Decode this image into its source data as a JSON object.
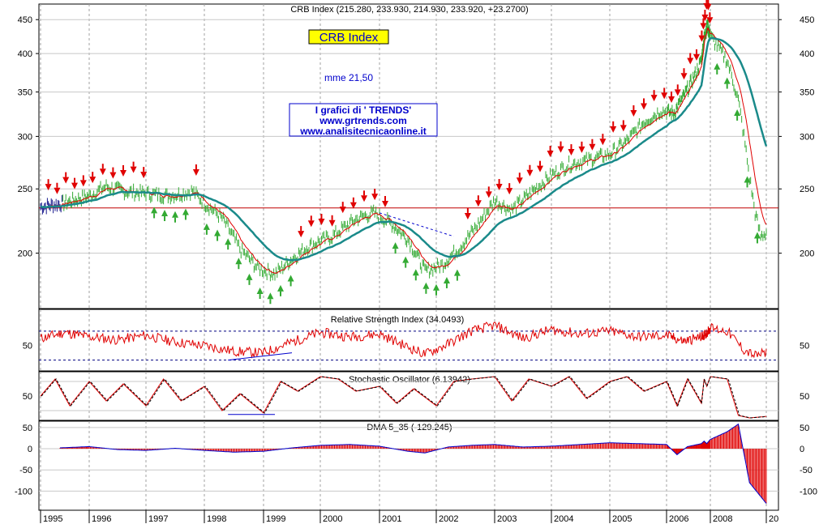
{
  "chart_data": [
    {
      "type": "line",
      "title": "CRB Index (215.280, 233.930, 214.930, 233.920, +23.2700)",
      "legend_label": "CRB Index",
      "moving_average_label": "mme 21,50",
      "credits": [
        "I grafici di ' TRENDS'",
        "www.grtrends.com",
        "www.analisitecnicaonline.it"
      ],
      "y_ticks": [
        450,
        400,
        350,
        300,
        250,
        200
      ],
      "ylim": [
        165,
        475
      ],
      "scale": "log",
      "horizontal_line": 234,
      "series": [
        {
          "x": [
            1995.0,
            1995.5,
            1996.0,
            1996.3,
            1996.6,
            1997.0,
            1997.4,
            1997.8,
            1998.0,
            1998.3,
            1998.6,
            1998.9,
            1999.2,
            1999.5,
            1999.8,
            2000.2,
            2000.6,
            2000.9,
            2001.2,
            2001.5,
            2001.8,
            2002.1,
            2002.4,
            2002.7,
            2003.0,
            2003.3,
            2003.6,
            2004.0,
            2004.3,
            2004.6,
            2005.0,
            2005.3,
            2005.6,
            2005.9,
            2006.2,
            2006.5,
            2006.8,
            2007.1,
            2007.4,
            2007.7,
            2008.0,
            2008.3,
            2008.5,
            2008.6,
            2008.7,
            2008.8,
            2008.9,
            2009.0
          ],
          "values": [
            235,
            238,
            244,
            252,
            248,
            246,
            244,
            248,
            238,
            226,
            203,
            190,
            186,
            196,
            205,
            212,
            225,
            230,
            222,
            210,
            188,
            192,
            204,
            220,
            240,
            232,
            245,
            262,
            272,
            276,
            282,
            295,
            315,
            328,
            325,
            345,
            370,
            400,
            430,
            440,
            425,
            390,
            340,
            300,
            260,
            230,
            212,
            215
          ]
        }
      ]
    },
    {
      "type": "line",
      "title": "Relative Strength Index (34.0493)",
      "y_ticks": [
        50
      ],
      "ylim": [
        15,
        100
      ],
      "series": [
        {
          "x": [
            1995.0,
            1995.5,
            1996.0,
            1996.5,
            1997.0,
            1997.5,
            1998.0,
            1998.5,
            1999.0,
            1999.5,
            2000.0,
            2000.5,
            2001.0,
            2001.5,
            2001.8,
            2002.2,
            2002.6,
            2003.0,
            2003.5,
            2004.0,
            2004.5,
            2005.0,
            2005.5,
            2006.0,
            2006.5,
            2007.0,
            2007.5,
            2008.0,
            2008.3,
            2008.6,
            2008.8,
            2009.0
          ],
          "values": [
            60,
            68,
            62,
            58,
            64,
            55,
            50,
            42,
            40,
            55,
            68,
            62,
            66,
            48,
            38,
            52,
            70,
            78,
            60,
            72,
            66,
            70,
            62,
            64,
            56,
            62,
            66,
            74,
            70,
            44,
            36,
            40
          ]
        }
      ]
    },
    {
      "type": "line",
      "title": "Stochastic Oscillator (6.13942)",
      "y_ticks": [
        50
      ],
      "ylim": [
        0,
        100
      ],
      "series": [
        {
          "x": [
            1995.0,
            1995.3,
            1995.6,
            1996.0,
            1996.3,
            1996.6,
            1997.0,
            1997.3,
            1997.6,
            1998.0,
            1998.3,
            1998.6,
            1999.0,
            1999.3,
            1999.6,
            2000.0,
            2000.3,
            2000.6,
            2001.0,
            2001.3,
            2001.6,
            2002.0,
            2002.3,
            2002.6,
            2003.0,
            2003.3,
            2003.6,
            2004.0,
            2004.3,
            2004.6,
            2005.0,
            2005.3,
            2005.6,
            2006.0,
            2006.3,
            2006.6,
            2007.0,
            2007.3,
            2007.6,
            2008.0,
            2008.3,
            2008.5,
            2008.7,
            2009.0
          ],
          "values": [
            50,
            85,
            30,
            80,
            40,
            75,
            30,
            85,
            40,
            70,
            20,
            55,
            15,
            80,
            60,
            90,
            85,
            60,
            70,
            35,
            65,
            30,
            80,
            85,
            90,
            40,
            85,
            70,
            90,
            45,
            80,
            90,
            60,
            80,
            30,
            85,
            35,
            85,
            70,
            90,
            85,
            10,
            5,
            8
          ]
        }
      ]
    },
    {
      "type": "bar",
      "title": "DMA 5_35 (-129.245)",
      "y_ticks": [
        50,
        0,
        -50,
        -100
      ],
      "ylim": [
        -145,
        65
      ],
      "series": [
        {
          "x": [
            1995.4,
            1996.0,
            1996.5,
            1997.0,
            1997.5,
            1998.0,
            1998.5,
            1999.0,
            1999.5,
            2000.0,
            2000.5,
            2001.0,
            2001.5,
            2001.8,
            2002.2,
            2002.6,
            2003.0,
            2003.5,
            2004.0,
            2004.5,
            2005.0,
            2005.5,
            2006.0,
            2006.3,
            2006.6,
            2007.0,
            2007.3,
            2007.6,
            2008.0,
            2008.3,
            2008.5,
            2008.7,
            2009.0
          ],
          "values": [
            2,
            5,
            -2,
            -4,
            1,
            -4,
            -8,
            -6,
            2,
            8,
            10,
            6,
            -6,
            -10,
            4,
            8,
            10,
            4,
            6,
            10,
            14,
            12,
            10,
            -14,
            5,
            12,
            18,
            12,
            22,
            40,
            58,
            -80,
            -129
          ]
        }
      ]
    }
  ],
  "x_axis": {
    "years": [
      "1995",
      "1996",
      "1997",
      "1998",
      "1999",
      "2000",
      "2001",
      "2002",
      "2003",
      "2004",
      "2005",
      "2006",
      "2008",
      "20"
    ]
  }
}
